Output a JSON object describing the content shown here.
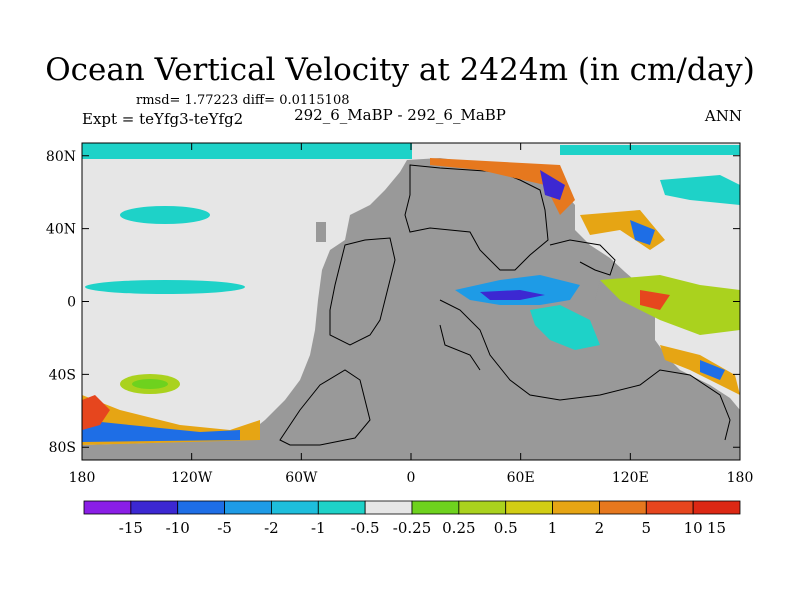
{
  "title": "Ocean Vertical Velocity at 2424m (in cm/day)",
  "stats": "rmsd= 1.77223 diff= 0.0115108",
  "left_label": "Expt = teYfg3-teYfg2",
  "center_label": "292_6_MaBP - 292_6_MaBP",
  "right_label": "ANN",
  "colors": {
    "land": "#999999",
    "background": "#e6e6e6",
    "coast": "#000000"
  },
  "x_ticks": [
    {
      "lon": -180,
      "label": "180"
    },
    {
      "lon": -120,
      "label": "120W"
    },
    {
      "lon": -60,
      "label": "60W"
    },
    {
      "lon": 0,
      "label": "0"
    },
    {
      "lon": 60,
      "label": "60E"
    },
    {
      "lon": 120,
      "label": "120E"
    },
    {
      "lon": 180,
      "label": "180"
    }
  ],
  "y_ticks": [
    {
      "lat": 80,
      "label": "80N"
    },
    {
      "lat": 40,
      "label": "40N"
    },
    {
      "lat": 0,
      "label": "0"
    },
    {
      "lat": -40,
      "label": "40S"
    },
    {
      "lat": -80,
      "label": "80S"
    }
  ],
  "colorbar": {
    "colors": [
      "#8a1ee6",
      "#3c28d2",
      "#1e6ee6",
      "#1e9be6",
      "#1ebedc",
      "#1ed2c8",
      "#e6e6e6",
      "#6ed21e",
      "#aad21e",
      "#d2cd14",
      "#e6a514",
      "#e6781e",
      "#e6461e",
      "#dc2814"
    ],
    "labels": [
      "-15",
      "-10",
      "-5",
      "-2",
      "-1",
      "-0.5",
      "-0.25",
      "0.25",
      "0.5",
      "1",
      "2",
      "5",
      "10",
      "15"
    ]
  }
}
